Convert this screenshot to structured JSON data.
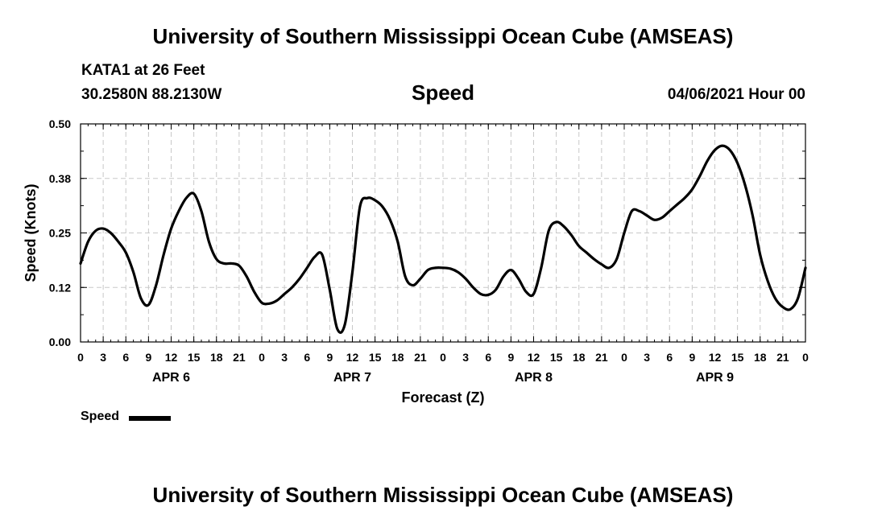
{
  "page": {
    "title_top": "University of Southern Mississippi Ocean Cube (AMSEAS)",
    "title_bottom": "University of Southern Mississippi Ocean Cube (AMSEAS)",
    "station": "KATA1 at 26 Feet",
    "coords": "30.2580N  88.2130W",
    "variable": "Speed",
    "datetime": "04/06/2021 Hour 00"
  },
  "legend": {
    "label": "Speed"
  },
  "chart_data": {
    "type": "line",
    "title": "Speed",
    "xlabel": "Forecast (Z)",
    "ylabel": "Speed (Knots)",
    "xlim": [
      0,
      96
    ],
    "ylim": [
      0,
      0.5
    ],
    "grid": true,
    "yticks": [
      0.0,
      0.125,
      0.25,
      0.375,
      0.5
    ],
    "ytick_labels": [
      "0.00",
      "0.12",
      "0.25",
      "0.38",
      "0.50"
    ],
    "xticks": [
      0,
      3,
      6,
      9,
      12,
      15,
      18,
      21,
      24,
      27,
      30,
      33,
      36,
      39,
      42,
      45,
      48,
      51,
      54,
      57,
      60,
      63,
      66,
      69,
      72,
      75,
      78,
      81,
      84,
      87,
      90,
      93,
      96
    ],
    "xtick_labels": [
      "0",
      "3",
      "6",
      "9",
      "12",
      "15",
      "18",
      "21",
      "0",
      "3",
      "6",
      "9",
      "12",
      "15",
      "18",
      "21",
      "0",
      "3",
      "6",
      "9",
      "12",
      "15",
      "18",
      "21",
      "0",
      "3",
      "6",
      "9",
      "12",
      "15",
      "18",
      "21",
      "0"
    ],
    "day_labels": [
      {
        "label": "APR 6",
        "x": 12
      },
      {
        "label": "APR 7",
        "x": 36
      },
      {
        "label": "APR 8",
        "x": 60
      },
      {
        "label": "APR 9",
        "x": 84
      }
    ],
    "series": [
      {
        "name": "Speed",
        "x": [
          0,
          1,
          2,
          3,
          4,
          5,
          6,
          7,
          8,
          9,
          10,
          11,
          12,
          13,
          14,
          15,
          16,
          17,
          18,
          19,
          20,
          21,
          22,
          23,
          24,
          25,
          26,
          27,
          28,
          29,
          30,
          31,
          32,
          33,
          34,
          35,
          36,
          37,
          38,
          39,
          40,
          41,
          42,
          43,
          44,
          45,
          46,
          47,
          48,
          49,
          50,
          51,
          52,
          53,
          54,
          55,
          56,
          57,
          58,
          59,
          60,
          61,
          62,
          63,
          64,
          65,
          66,
          67,
          68,
          69,
          70,
          71,
          72,
          73,
          74,
          75,
          76,
          77,
          78,
          79,
          80,
          81,
          82,
          83,
          84,
          85,
          86,
          87,
          88,
          89,
          90,
          91,
          92,
          93,
          94,
          95,
          96
        ],
        "values": [
          0.18,
          0.23,
          0.255,
          0.26,
          0.25,
          0.23,
          0.205,
          0.16,
          0.1,
          0.085,
          0.13,
          0.2,
          0.26,
          0.3,
          0.33,
          0.34,
          0.3,
          0.23,
          0.19,
          0.18,
          0.18,
          0.175,
          0.15,
          0.115,
          0.09,
          0.088,
          0.095,
          0.11,
          0.125,
          0.145,
          0.17,
          0.195,
          0.2,
          0.12,
          0.03,
          0.04,
          0.16,
          0.31,
          0.33,
          0.325,
          0.31,
          0.28,
          0.23,
          0.15,
          0.13,
          0.145,
          0.165,
          0.17,
          0.17,
          0.168,
          0.16,
          0.145,
          0.125,
          0.11,
          0.108,
          0.12,
          0.15,
          0.165,
          0.145,
          0.115,
          0.11,
          0.17,
          0.255,
          0.275,
          0.265,
          0.245,
          0.22,
          0.205,
          0.19,
          0.178,
          0.17,
          0.19,
          0.25,
          0.3,
          0.3,
          0.29,
          0.28,
          0.285,
          0.3,
          0.315,
          0.33,
          0.35,
          0.38,
          0.415,
          0.44,
          0.45,
          0.44,
          0.41,
          0.36,
          0.29,
          0.2,
          0.14,
          0.1,
          0.08,
          0.075,
          0.1,
          0.17
        ]
      }
    ]
  }
}
